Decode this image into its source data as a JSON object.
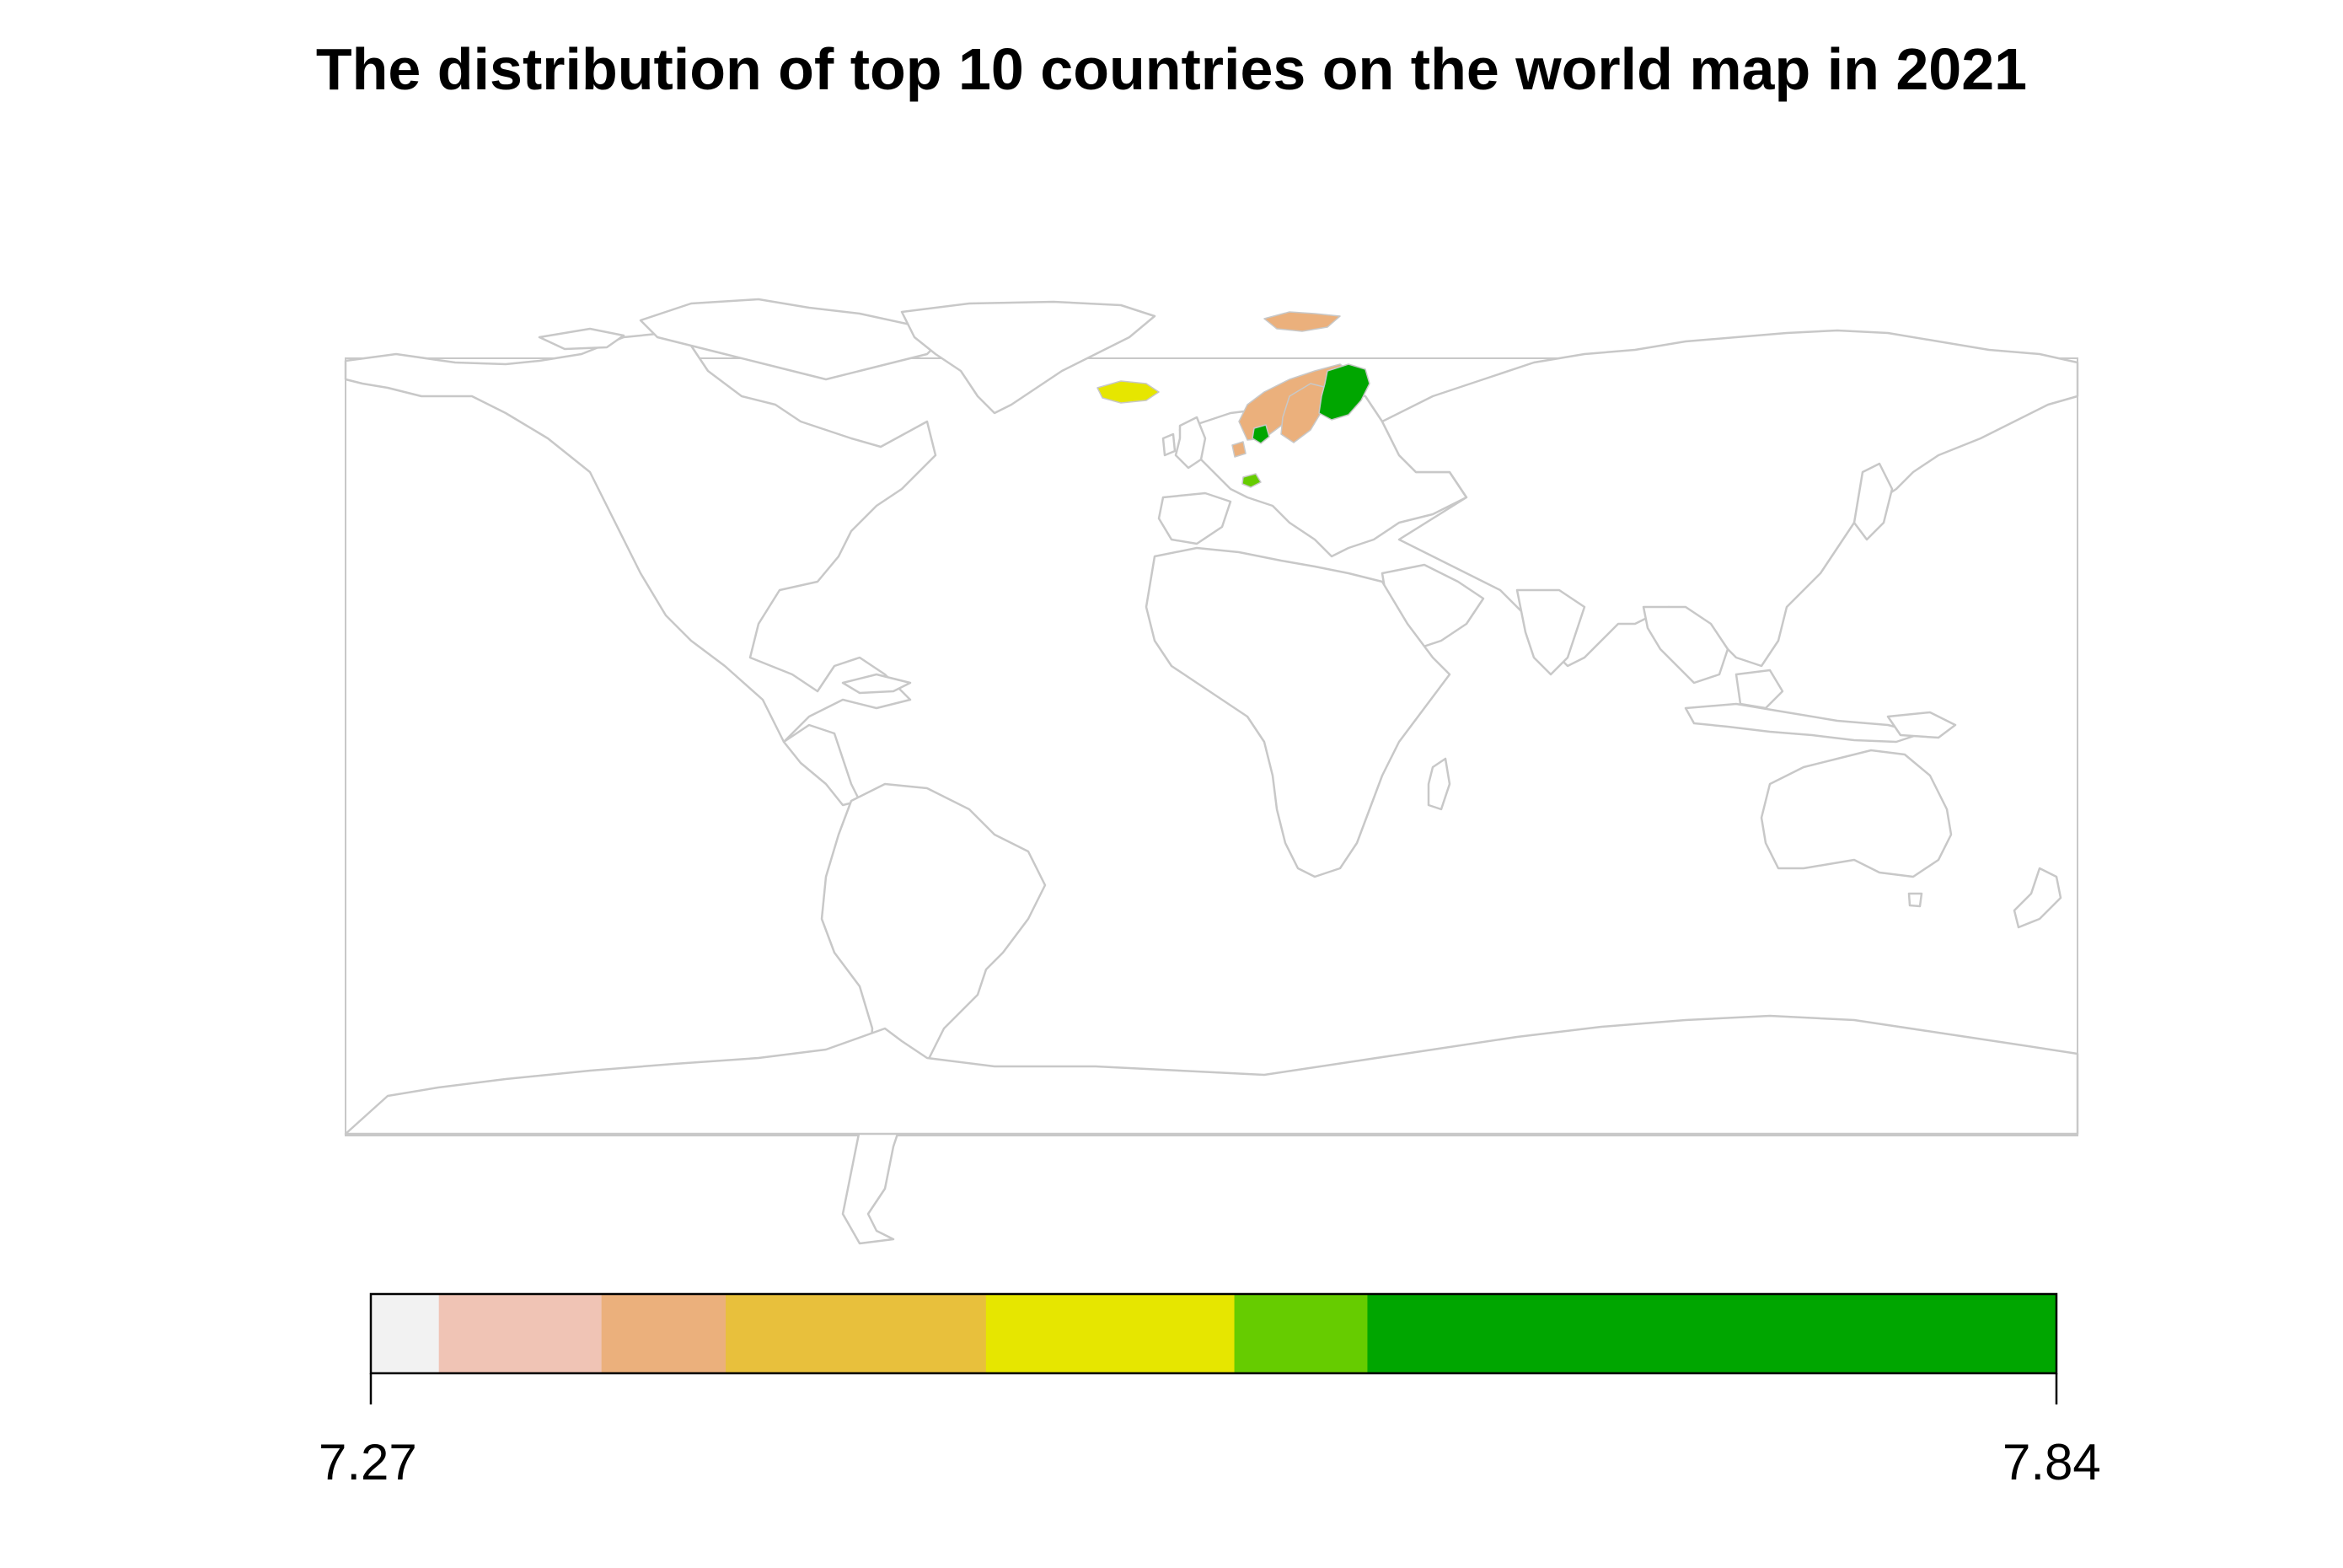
{
  "title": "The distribution of top 10 countries on the world map in 2021",
  "legend": {
    "min_label": "7.27",
    "max_label": "7.84",
    "min": 7.27,
    "max": 7.84,
    "bins": [
      {
        "from": 7.27,
        "to": 7.293,
        "color": "#f2f2f2"
      },
      {
        "from": 7.293,
        "to": 7.348,
        "color": "#f0c4b5"
      },
      {
        "from": 7.348,
        "to": 7.39,
        "color": "#ebb07c"
      },
      {
        "from": 7.39,
        "to": 7.478,
        "color": "#e8c03c"
      },
      {
        "from": 7.478,
        "to": 7.562,
        "color": "#e6e600"
      },
      {
        "from": 7.562,
        "to": 7.607,
        "color": "#66cc00"
      },
      {
        "from": 7.607,
        "to": 7.84,
        "color": "#00a600"
      }
    ]
  },
  "colors": {
    "outline": "#c8c8c8",
    "background": "#ffffff"
  },
  "highlighted_regions": [
    {
      "name": "Finland",
      "color": "#00a600"
    },
    {
      "name": "Denmark",
      "color": "#00a600"
    },
    {
      "name": "Norway",
      "color": "#ebb07c"
    },
    {
      "name": "Sweden",
      "color": "#ebb07c"
    },
    {
      "name": "Netherlands",
      "color": "#ebb07c"
    },
    {
      "name": "Svalbard",
      "color": "#ebb07c"
    },
    {
      "name": "Iceland",
      "color": "#e6e600"
    },
    {
      "name": "Switzerland",
      "color": "#66cc00"
    }
  ]
}
